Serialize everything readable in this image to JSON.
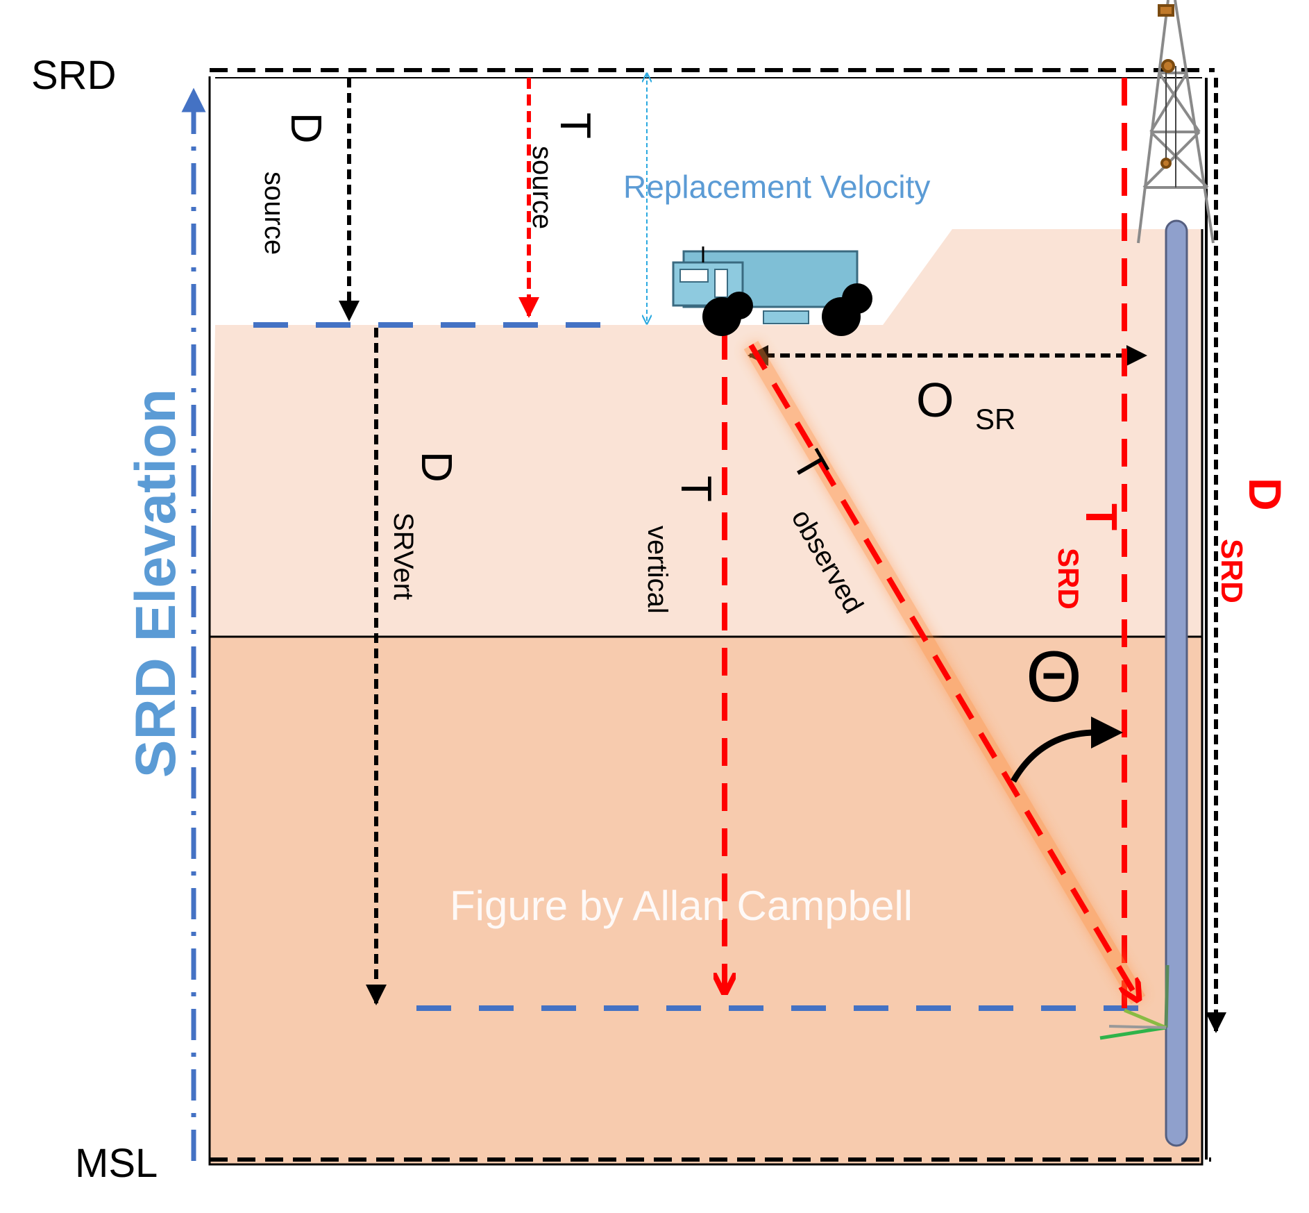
{
  "labels": {
    "srd": "SRD",
    "msl": "MSL",
    "srd_elevation": "SRD Elevation",
    "replacement_velocity": "Replacement Velocity",
    "d_source_main": "D",
    "d_source_sub": "source",
    "t_source_main": "T",
    "t_source_sub": "source",
    "d_srvert_main": "D",
    "d_srvert_sub": "SRVert",
    "t_vertical_main": "T",
    "t_vertical_sub": "vertical",
    "t_observed_main": "T",
    "t_observed_sub": "observed",
    "o_sr_main": "O",
    "o_sr_sub": "SR",
    "t_srd_main": "T",
    "t_srd_sub": "SRD",
    "d_srd_main": "D",
    "d_srd_sub": "SRD",
    "theta": "Θ",
    "credit": "Figure by Allan Campbell"
  },
  "colors": {
    "upper_layer": "#fae3d6",
    "lower_layer": "#f7cbae",
    "depth_arrow": "#000000",
    "time_arrow": "#ff0000",
    "datum_line": "#4472c4",
    "replacement_velocity": "#5b9bd5",
    "truck": "#7fbfd6",
    "well_casing": "#8fa0cc"
  },
  "icons": [
    "truck-icon",
    "drilling-rig-icon",
    "receiver-icon"
  ]
}
